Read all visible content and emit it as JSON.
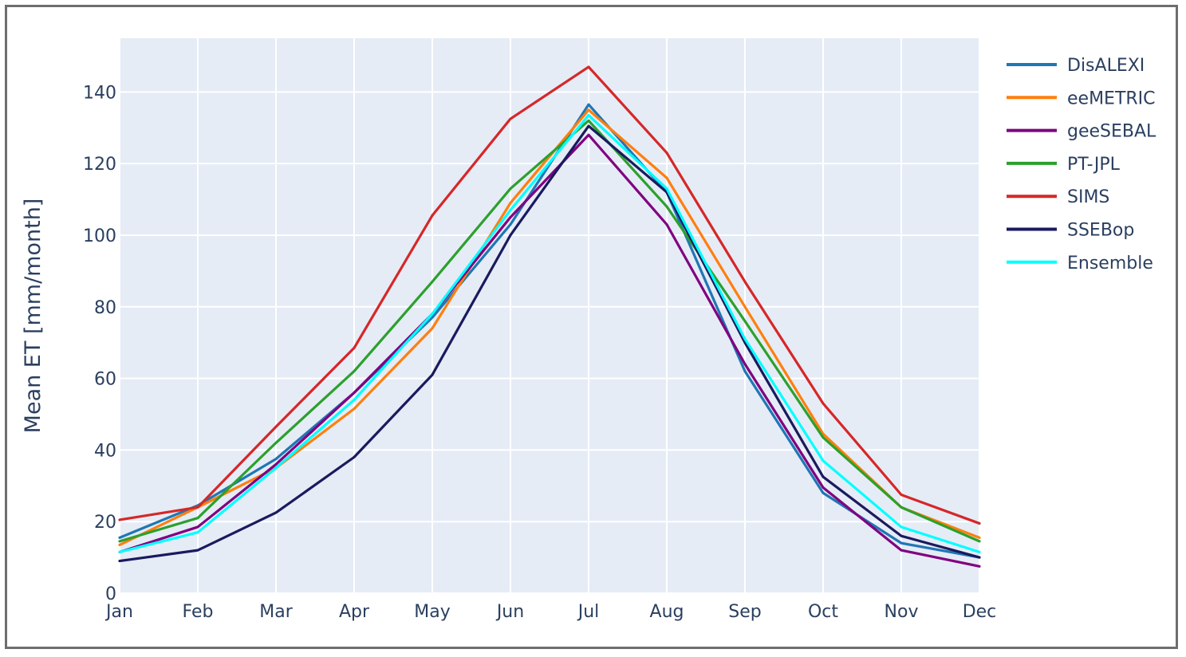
{
  "chart_data": {
    "type": "line",
    "title": "",
    "xlabel": "",
    "ylabel": "Mean ET [mm/month]",
    "categories": [
      "Jan",
      "Feb",
      "Mar",
      "Apr",
      "May",
      "Jun",
      "Jul",
      "Aug",
      "Sep",
      "Oct",
      "Nov",
      "Dec"
    ],
    "ylim": [
      0,
      155
    ],
    "yticks": [
      0,
      20,
      40,
      60,
      80,
      100,
      120,
      140
    ],
    "grid": true,
    "legend_position": "right",
    "series": [
      {
        "name": "DisALEXI",
        "color": "#1f77b4",
        "values": [
          15.5,
          24.5,
          37.5,
          56,
          77,
          103,
          136.5,
          112,
          62,
          28,
          14,
          10
        ]
      },
      {
        "name": "eeMETRIC",
        "color": "#ff7f0e",
        "values": [
          13.5,
          24,
          35,
          51.5,
          74,
          109,
          135,
          116,
          80,
          44.5,
          24,
          15.5
        ]
      },
      {
        "name": "geeSEBAL",
        "color": "#800080",
        "values": [
          11.5,
          18.5,
          36,
          56,
          78,
          105,
          128,
          103,
          64,
          29.5,
          12,
          7.5
        ]
      },
      {
        "name": "PT-JPL",
        "color": "#2ca02c",
        "values": [
          14.5,
          21,
          42,
          62,
          87,
          113,
          132,
          108,
          76,
          43.5,
          24,
          14.5
        ]
      },
      {
        "name": "SIMS",
        "color": "#d62728",
        "values": [
          20.5,
          24,
          46.5,
          68.5,
          105.5,
          132.5,
          147,
          123,
          87,
          53,
          27.5,
          19.5
        ]
      },
      {
        "name": "SSEBop",
        "color": "#1a1a5e",
        "values": [
          9,
          12,
          22.5,
          38,
          61,
          100,
          130.5,
          112,
          70,
          32.5,
          16,
          10
        ]
      },
      {
        "name": "Ensemble",
        "color": "#00ffff",
        "values": [
          11.5,
          17,
          35,
          54,
          78,
          107,
          133.5,
          113,
          71,
          37,
          18.5,
          11.5
        ]
      }
    ]
  }
}
